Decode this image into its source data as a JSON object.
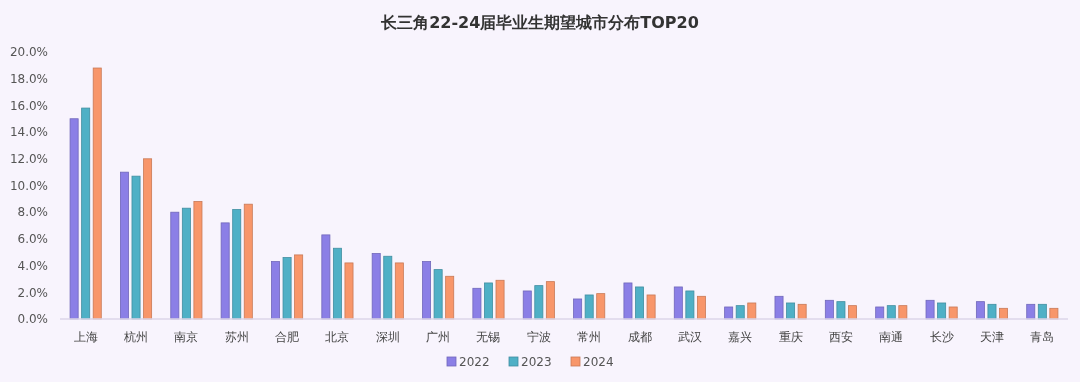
{
  "chart_data": {
    "type": "bar",
    "title": "长三角22-24届毕业生期望城市分布TOP20",
    "categories": [
      "上海",
      "杭州",
      "南京",
      "苏州",
      "合肥",
      "北京",
      "深圳",
      "广州",
      "无锡",
      "宁波",
      "常州",
      "成都",
      "武汉",
      "嘉兴",
      "重庆",
      "西安",
      "南通",
      "长沙",
      "天津",
      "青岛"
    ],
    "series": [
      {
        "name": "2022",
        "color": "#8b7fe6",
        "values": [
          15.0,
          11.0,
          8.0,
          7.2,
          4.3,
          6.3,
          4.9,
          4.3,
          2.3,
          2.1,
          1.5,
          2.7,
          2.4,
          0.9,
          1.7,
          1.4,
          0.9,
          1.4,
          1.3,
          1.1
        ]
      },
      {
        "name": "2023",
        "color": "#4fb0c6",
        "values": [
          15.8,
          10.7,
          8.3,
          8.2,
          4.6,
          5.3,
          4.7,
          3.7,
          2.7,
          2.5,
          1.8,
          2.4,
          2.1,
          1.0,
          1.2,
          1.3,
          1.0,
          1.2,
          1.1,
          1.1
        ]
      },
      {
        "name": "2024",
        "color": "#f8966a",
        "values": [
          18.8,
          12.0,
          8.8,
          8.6,
          4.8,
          4.2,
          4.2,
          3.2,
          2.9,
          2.8,
          1.9,
          1.8,
          1.7,
          1.2,
          1.1,
          1.0,
          1.0,
          0.9,
          0.8,
          0.8
        ]
      }
    ],
    "ylim": [
      0,
      20
    ],
    "yticks": [
      {
        "value": 0,
        "label": "0.0%"
      },
      {
        "value": 2,
        "label": "2.0%"
      },
      {
        "value": 4,
        "label": "4.0%"
      },
      {
        "value": 6,
        "label": "6.0%"
      },
      {
        "value": 8,
        "label": "8.0%"
      },
      {
        "value": 10,
        "label": "10.0%"
      },
      {
        "value": 12,
        "label": "12.0%"
      },
      {
        "value": 14,
        "label": "14.0%"
      },
      {
        "value": 16,
        "label": "16.0%"
      },
      {
        "value": 18,
        "label": "18.0%"
      },
      {
        "value": 20,
        "label": "20.0%"
      }
    ],
    "grid": false,
    "legend": "bottom"
  }
}
